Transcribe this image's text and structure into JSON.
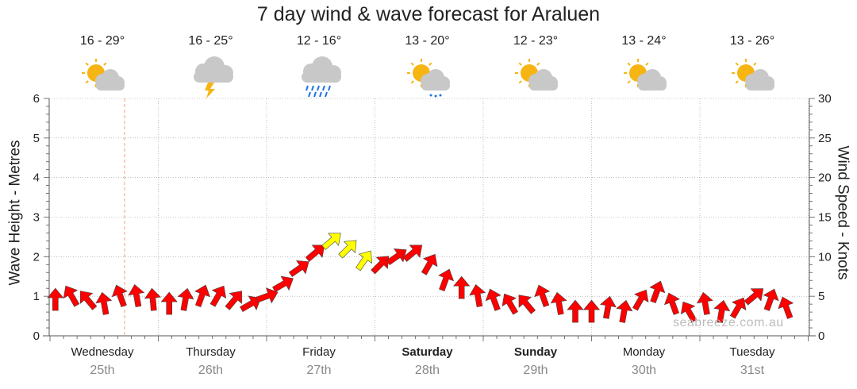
{
  "title": "7 day wind & wave forecast for Araluen",
  "watermark": "seabreeze.com.au",
  "days": [
    {
      "name": "Wednesday",
      "date": "25th",
      "temp": "16 - 29°",
      "icon": "partly-cloudy-icon",
      "bold": false
    },
    {
      "name": "Thursday",
      "date": "26th",
      "temp": "16 - 25°",
      "icon": "thunderstorm-icon",
      "bold": false
    },
    {
      "name": "Friday",
      "date": "27th",
      "temp": "12 - 16°",
      "icon": "rain-icon",
      "bold": false
    },
    {
      "name": "Saturday",
      "date": "28th",
      "temp": "13 - 20°",
      "icon": "light-shower-icon",
      "bold": true
    },
    {
      "name": "Sunday",
      "date": "29th",
      "temp": "12 - 23°",
      "icon": "partly-cloudy-icon",
      "bold": true
    },
    {
      "name": "Monday",
      "date": "30th",
      "temp": "13 - 24°",
      "icon": "partly-cloudy-icon",
      "bold": false
    },
    {
      "name": "Tuesday",
      "date": "31st",
      "temp": "13 - 26°",
      "icon": "partly-cloudy-icon",
      "bold": false
    }
  ],
  "colors": {
    "arrow_strong": "#ff0000",
    "arrow_light": "#ffff00",
    "grid": "#999999",
    "now_line": "#f4a07a",
    "sun": "#f6b512",
    "cloud": "#c8c8c8",
    "rain": "#1e73e8"
  },
  "chart_data": {
    "type": "line",
    "title": "7 day wind & wave forecast for Araluen",
    "ylabel": "Wave Height - Metres",
    "y2label": "Wind Speed - Knots",
    "ylim": [
      0,
      6
    ],
    "y2lim": [
      0,
      30
    ],
    "yticks": [
      "0",
      "1",
      "2",
      "3",
      "4",
      "5",
      "6"
    ],
    "y2ticks": [
      "0",
      "5",
      "10",
      "15",
      "20",
      "25",
      "30"
    ],
    "grid": true,
    "categories": [
      "Wednesday 25th",
      "Thursday 26th",
      "Friday 27th",
      "Saturday 28th",
      "Sunday 29th",
      "Monday 30th",
      "Tuesday 31st"
    ],
    "series": [
      {
        "axis": "right",
        "x": [
          0.05,
          0.2,
          0.35,
          0.5,
          0.65,
          0.8,
          0.95,
          1.1,
          1.25,
          1.4,
          1.55,
          1.7,
          1.85,
          2.0,
          2.15,
          2.3,
          2.45,
          2.6,
          2.75,
          2.9,
          3.05,
          3.2,
          3.35,
          3.5,
          3.65,
          3.8,
          3.95,
          4.1,
          4.25,
          4.4,
          4.55,
          4.7,
          4.85,
          5.0,
          5.15,
          5.3,
          5.45,
          5.6,
          5.75,
          5.9,
          6.05,
          6.2,
          6.35,
          6.5,
          6.65,
          6.8
        ],
        "values": [
          4.5,
          5.0,
          4.5,
          4.0,
          5.0,
          5.0,
          4.5,
          4.0,
          4.5,
          5.0,
          5.0,
          4.5,
          4.0,
          5.0,
          6.5,
          8.5,
          10.5,
          12.0,
          11.0,
          9.5,
          9.0,
          10.0,
          10.5,
          9.0,
          7.0,
          6.0,
          5.0,
          4.5,
          4.0,
          4.0,
          5.0,
          4.0,
          3.0,
          3.0,
          3.5,
          3.0,
          4.5,
          5.5,
          4.0,
          3.0,
          4.0,
          3.0,
          3.5,
          5.0,
          4.5,
          3.5
        ],
        "direction_deg": [
          90,
          120,
          130,
          100,
          110,
          100,
          95,
          90,
          80,
          70,
          60,
          50,
          30,
          20,
          30,
          35,
          40,
          40,
          45,
          55,
          45,
          35,
          40,
          60,
          70,
          90,
          100,
          110,
          120,
          130,
          110,
          100,
          90,
          90,
          80,
          80,
          60,
          70,
          110,
          120,
          100,
          80,
          60,
          40,
          70,
          110
        ],
        "highlight_range": [
          2.55,
          2.95
        ]
      }
    ]
  }
}
